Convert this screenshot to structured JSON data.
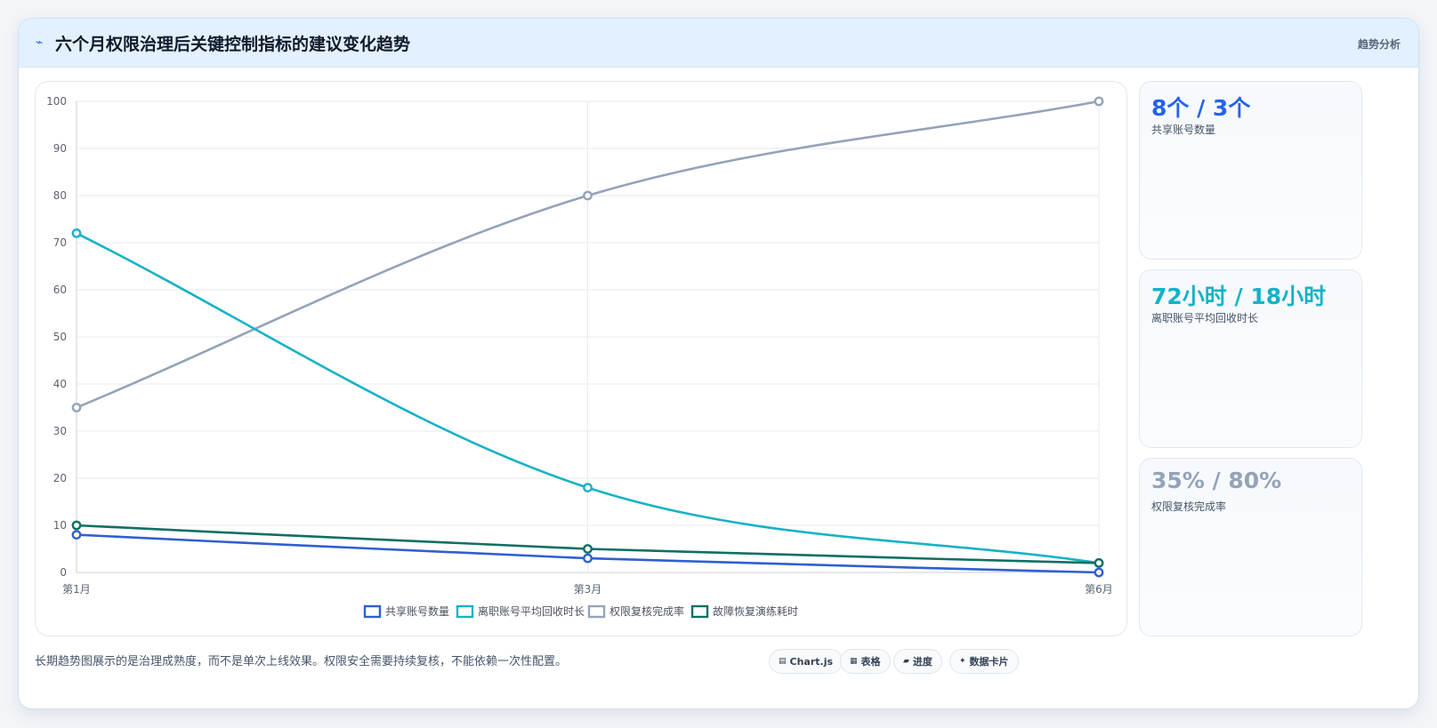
{
  "header": {
    "icon": "chart-spark-icon",
    "title": "六个月权限治理后关键控制指标的建议变化趋势",
    "tag": "趋势分析"
  },
  "stats": [
    {
      "value": "8个 / 3个",
      "label": "共享账号数量",
      "color": "#2563eb"
    },
    {
      "value": "72小时 / 18小时",
      "label": "离职账号平均回收时长",
      "color": "#14b3c7"
    },
    {
      "value": "35% / 80%",
      "label": "权限复核完成率",
      "color": "#94a3b8"
    }
  ],
  "footer": {
    "note": "长期趋势图展示的是治理成熟度，而不是单次上线效果。权限安全需要持续复核，不能依赖一次性配置。",
    "chips": [
      {
        "icon": "chart-icon",
        "label": "Chart.js"
      },
      {
        "icon": "table-icon",
        "label": "表格"
      },
      {
        "icon": "progress-icon",
        "label": "进度"
      },
      {
        "icon": "sparkle-icon",
        "label": "数据卡片"
      }
    ]
  },
  "chart_data": {
    "type": "line",
    "title": "",
    "xlabel": "",
    "ylabel": "",
    "categories": [
      "第1月",
      "第3月",
      "第6月"
    ],
    "ylim": [
      0,
      100
    ],
    "yticks": [
      0,
      10,
      20,
      30,
      40,
      50,
      60,
      70,
      80,
      90,
      100
    ],
    "grid": true,
    "legend_position": "bottom",
    "series": [
      {
        "name": "共享账号数量",
        "values": [
          8,
          3,
          0
        ],
        "color": "#2f5fd0"
      },
      {
        "name": "离职账号平均回收时长",
        "values": [
          72,
          18,
          2
        ],
        "color": "#17b2c6"
      },
      {
        "name": "权限复核完成率",
        "values": [
          35,
          80,
          100
        ],
        "color": "#94a3b8"
      },
      {
        "name": "故障恢复演练耗时",
        "values": [
          10,
          5,
          2
        ],
        "color": "#0f6f64"
      }
    ]
  }
}
